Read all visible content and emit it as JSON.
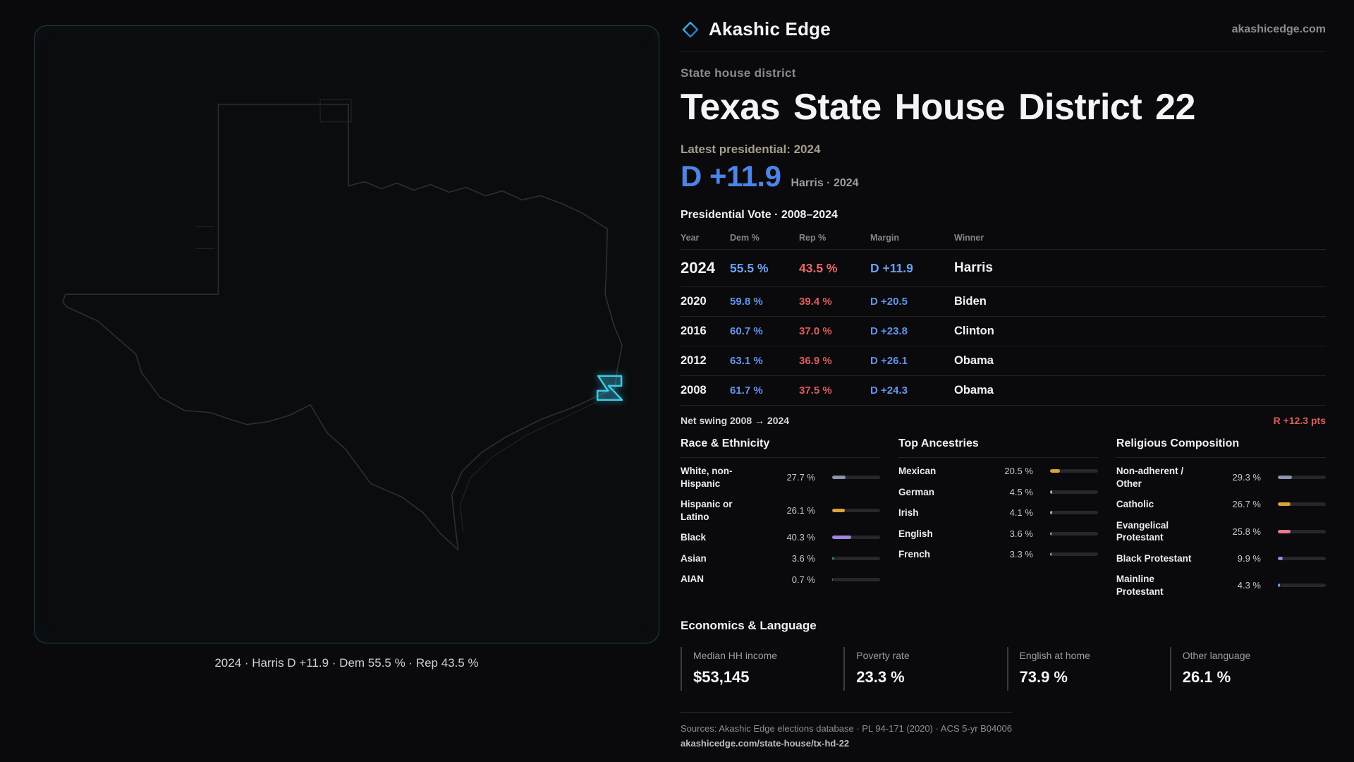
{
  "brand": {
    "name": "Akashic Edge",
    "domain": "akashicedge.com"
  },
  "page": {
    "kicker": "State house district",
    "title": "Texas State House District 22",
    "latest_label": "Latest presidential: 2024",
    "headline": {
      "margin": "D +11.9",
      "note": "Harris · 2024"
    }
  },
  "map": {
    "caption": "2024 · Harris D +11.9 · Dem 55.5 % · Rep 43.5 %"
  },
  "vote_table": {
    "title": "Presidential Vote · 2008–2024",
    "columns": [
      "Year",
      "Dem %",
      "Rep %",
      "Margin",
      "Winner"
    ],
    "rows": [
      {
        "year": "2024",
        "dem": "55.5 %",
        "rep": "43.5 %",
        "margin": "D +11.9",
        "winner": "Harris"
      },
      {
        "year": "2020",
        "dem": "59.8 %",
        "rep": "39.4 %",
        "margin": "D +20.5",
        "winner": "Biden"
      },
      {
        "year": "2016",
        "dem": "60.7 %",
        "rep": "37.0 %",
        "margin": "D +23.8",
        "winner": "Clinton"
      },
      {
        "year": "2012",
        "dem": "63.1 %",
        "rep": "36.9 %",
        "margin": "D +26.1",
        "winner": "Obama"
      },
      {
        "year": "2008",
        "dem": "61.7 %",
        "rep": "37.5 %",
        "margin": "D +24.3",
        "winner": "Obama"
      }
    ],
    "net_swing": {
      "label": "Net swing 2008 → 2024",
      "value": "R +12.3 pts"
    }
  },
  "race": {
    "title": "Race & Ethnicity",
    "items": [
      {
        "label": "White, non-Hispanic",
        "pct": "27.7 %",
        "value": 27.7,
        "color": "#8b93ad"
      },
      {
        "label": "Hispanic or Latino",
        "pct": "26.1 %",
        "value": 26.1,
        "color": "#d9a43c"
      },
      {
        "label": "Black",
        "pct": "40.3 %",
        "value": 40.3,
        "color": "#9f84e0"
      },
      {
        "label": "Asian",
        "pct": "3.6 %",
        "value": 3.6,
        "color": "#3f9e63"
      },
      {
        "label": "AIAN",
        "pct": "0.7 %",
        "value": 0.7,
        "color": "#b65c3a"
      }
    ]
  },
  "ancestry": {
    "title": "Top Ancestries",
    "items": [
      {
        "label": "Mexican",
        "pct": "20.5 %",
        "value": 20.5,
        "color": "#d9a43c"
      },
      {
        "label": "German",
        "pct": "4.5 %",
        "value": 4.5,
        "color": "#a8adb8"
      },
      {
        "label": "Irish",
        "pct": "4.1 %",
        "value": 4.1,
        "color": "#a8adb8"
      },
      {
        "label": "English",
        "pct": "3.6 %",
        "value": 3.6,
        "color": "#a8adb8"
      },
      {
        "label": "French",
        "pct": "3.3 %",
        "value": 3.3,
        "color": "#a8adb8"
      }
    ]
  },
  "religion": {
    "title": "Religious Composition",
    "items": [
      {
        "label": "Non-adherent / Other",
        "pct": "29.3 %",
        "value": 29.3,
        "color": "#8b93ad"
      },
      {
        "label": "Catholic",
        "pct": "26.7 %",
        "value": 26.7,
        "color": "#d9a43c"
      },
      {
        "label": "Evangelical Protestant",
        "pct": "25.8 %",
        "value": 25.8,
        "color": "#e8798a"
      },
      {
        "label": "Black Protestant",
        "pct": "9.9 %",
        "value": 9.9,
        "color": "#9f84e0"
      },
      {
        "label": "Mainline Protestant",
        "pct": "4.3 %",
        "value": 4.3,
        "color": "#6b9bf5"
      }
    ]
  },
  "economics": {
    "title": "Economics & Language",
    "stats": [
      {
        "label": "Median HH income",
        "value": "$53,145"
      },
      {
        "label": "Poverty rate",
        "value": "23.3 %"
      },
      {
        "label": "English at home",
        "value": "73.9 %"
      },
      {
        "label": "Other language",
        "value": "26.1 %"
      }
    ]
  },
  "footer": {
    "sources": "Sources: Akashic Edge elections database · PL 94-171 (2020) · ACS 5-yr B04006",
    "permalink": "akashicedge.com/state-house/tx-hd-22"
  },
  "colors": {
    "dem": "#4d84e8",
    "rep": "#e05c5c",
    "accent": "#3ec9e8"
  }
}
